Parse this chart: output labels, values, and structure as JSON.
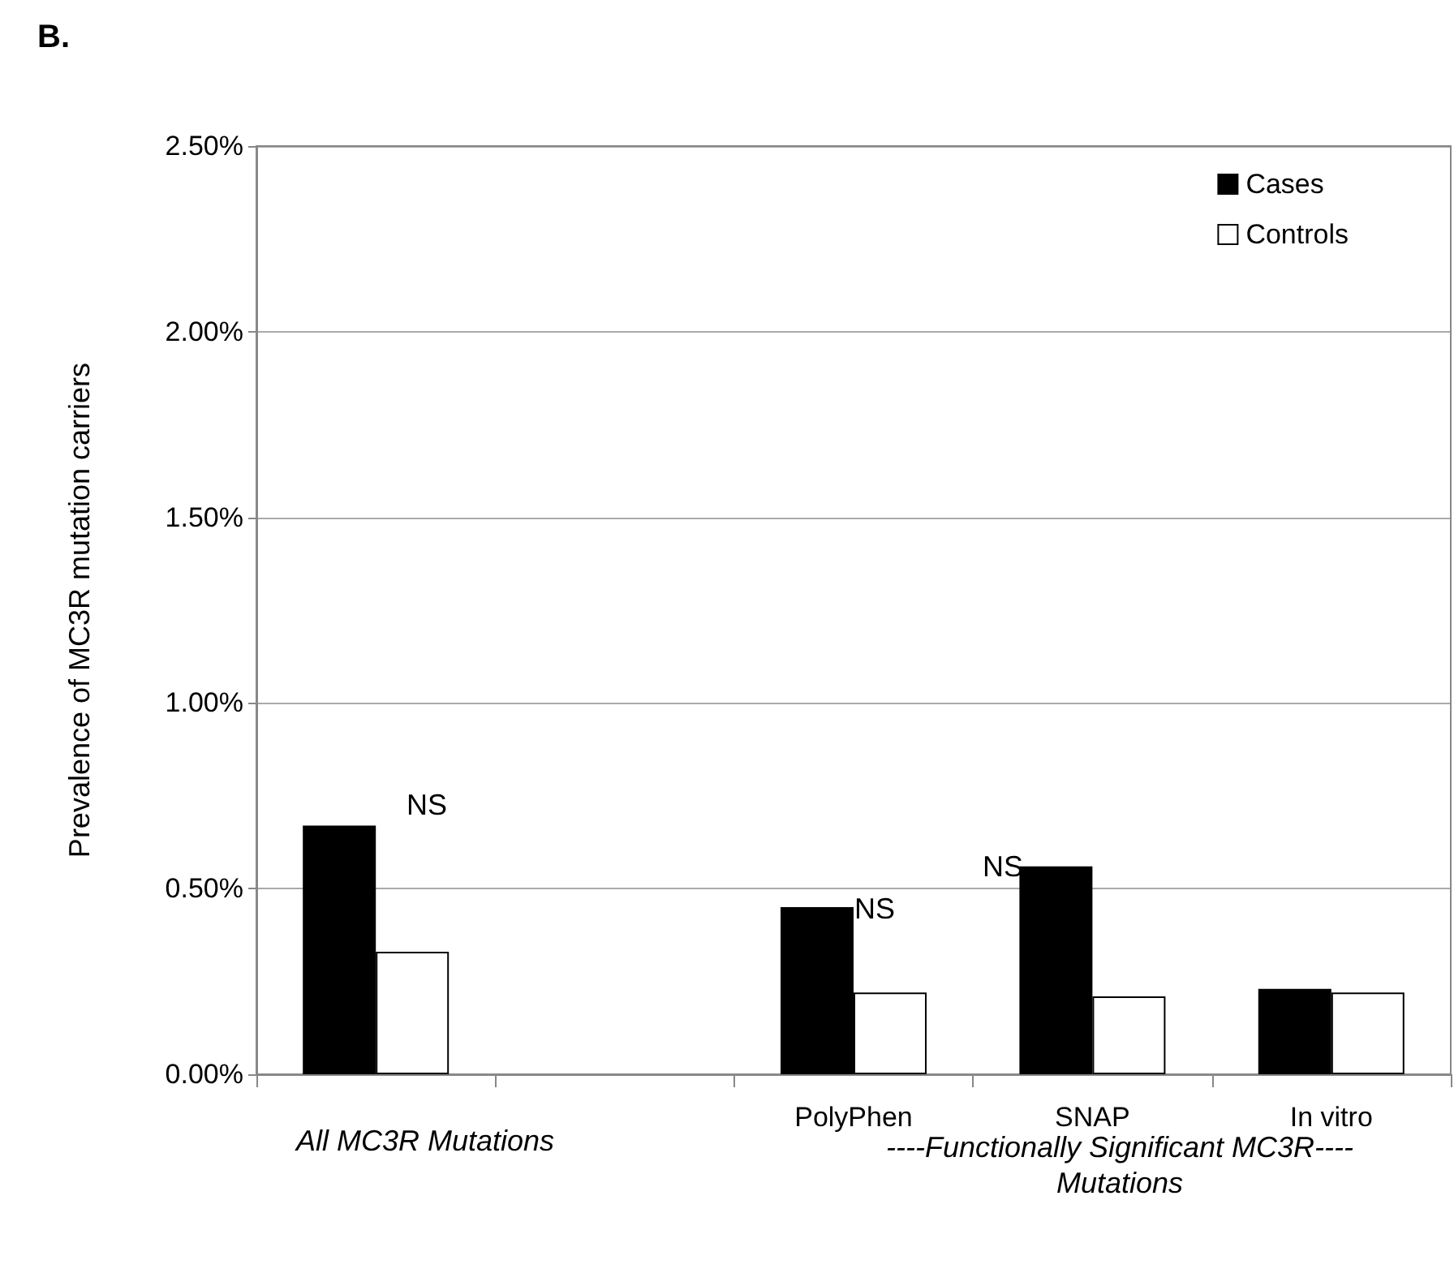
{
  "chart_data": {
    "type": "bar",
    "title": "B.",
    "ylabel": "Prevalence of MC3R mutation carriers",
    "categories": [
      null,
      null,
      "PolyPhen",
      "SNAP",
      "In vitro"
    ],
    "series": [
      {
        "name": "Cases",
        "color": "#000000",
        "values": [
          0.67,
          null,
          0.45,
          0.56,
          0.23
        ]
      },
      {
        "name": "Controls",
        "color": "#ffffff",
        "values": [
          0.33,
          null,
          0.22,
          0.21,
          0.22
        ]
      }
    ],
    "ylim": [
      0,
      2.5
    ],
    "yticks": [
      {
        "value": 0,
        "label": "0.00%"
      },
      {
        "value": 0.5,
        "label": "0.50%"
      },
      {
        "value": 1,
        "label": "1.00%"
      },
      {
        "value": 1.5,
        "label": "1.50%"
      },
      {
        "value": 2,
        "label": "2.00%"
      },
      {
        "value": 2.5,
        "label": "2.50%"
      }
    ],
    "grid": "y",
    "legend": "top right",
    "annotations": [
      "All MC3R Mutations",
      "----Functionally Significant MC3R----\nMutations",
      "NS",
      "NS",
      "NS"
    ]
  }
}
